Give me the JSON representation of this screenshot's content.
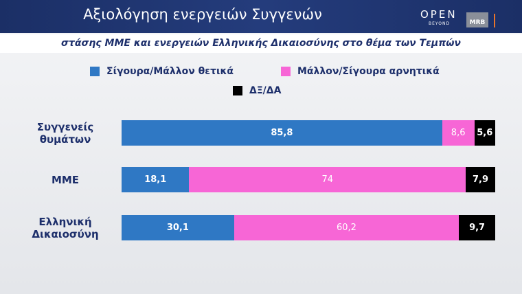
{
  "header": {
    "logo_open": "OPEN",
    "logo_beyond": "BEYOND",
    "logo_mrb": "MRB"
  },
  "chart_data": {
    "type": "stacked-bar-horizontal",
    "title": "Αξιολόγηση ενεργειών Συγγενών",
    "subtitle": "στάσης ΜΜΕ και ενεργειών Ελληνικής Δικαιοσύνης στο θέμα των Τεμπών",
    "categories": [
      "Συγγενείς θυμάτων",
      "ΜΜΕ",
      "Ελληνική Δικαιοσύνη"
    ],
    "xlim": [
      0,
      100
    ],
    "series": [
      {
        "name": "Σίγουρα/Μάλλον θετικά",
        "color": "#2f78c4",
        "values": [
          85.8,
          18.1,
          30.1
        ],
        "value_labels": [
          "85,8",
          "18,1",
          "30,1"
        ]
      },
      {
        "name": "Μάλλον/Σίγουρα αρνητικά",
        "color": "#f766d6",
        "values": [
          8.6,
          74,
          60.2
        ],
        "value_labels": [
          "8,6",
          "74",
          "60,2"
        ]
      },
      {
        "name": "ΔΞ/ΔΑ",
        "color": "#000000",
        "values": [
          5.6,
          7.9,
          9.7
        ],
        "value_labels": [
          "5,6",
          "7,9",
          "9,7"
        ]
      }
    ]
  }
}
